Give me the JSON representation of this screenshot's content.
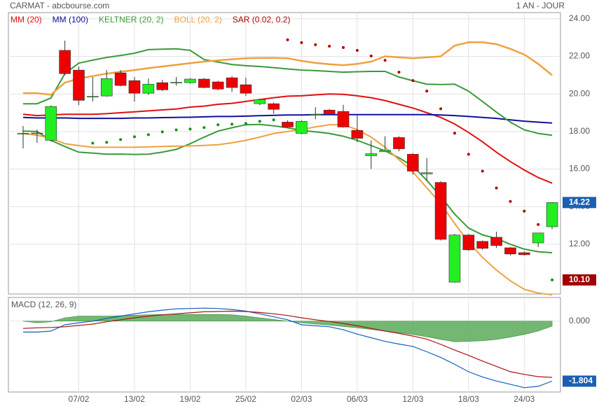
{
  "chart_data": [
    {
      "type": "candlestick",
      "title": "CARMAT - abcbourse.com",
      "subtitle": "1 AN - JOUR",
      "categories": [
        null,
        null,
        null,
        null,
        "07/02",
        null,
        null,
        null,
        "13/02",
        null,
        null,
        null,
        "19/02",
        null,
        null,
        null,
        "25/02",
        null,
        null,
        null,
        "02/03",
        null,
        null,
        null,
        "06/03",
        null,
        null,
        null,
        "12/03",
        null,
        null,
        null,
        "18/03",
        null,
        null,
        null,
        "24/03",
        null,
        null
      ],
      "open": [
        17.9,
        17.9,
        17.53,
        22.32,
        21.27,
        19.85,
        19.89,
        21.12,
        20.71,
        20.04,
        20.6,
        20.6,
        20.6,
        20.79,
        20.64,
        20.86,
        20.49,
        19.48,
        19.48,
        18.5,
        17.9,
        18.9,
        19.14,
        19.07,
        18.06,
        16.71,
        16.93,
        17.68,
        16.79,
        15.74,
        15.29,
        9.98,
        12.49,
        12.15,
        12.37,
        11.81,
        11.55,
        12.07,
        12.93
      ],
      "high": [
        18.3,
        18.1,
        19.4,
        22.84,
        21.46,
        20.9,
        21.27,
        21.27,
        20.9,
        20.82,
        20.75,
        20.9,
        20.85,
        20.85,
        20.7,
        20.95,
        20.86,
        19.75,
        19.55,
        18.6,
        18.6,
        19.3,
        19.2,
        19.42,
        18.85,
        17.53,
        17.75,
        17.75,
        16.85,
        16.59,
        15.35,
        12.55,
        12.55,
        12.2,
        12.67,
        11.85,
        11.62,
        12.6,
        14.25
      ],
      "low": [
        17.1,
        17.4,
        17.46,
        21.0,
        19.4,
        19.6,
        19.85,
        20.4,
        19.59,
        19.95,
        20.15,
        20.45,
        20.55,
        20.3,
        20.2,
        20.1,
        19.9,
        19.4,
        18.95,
        18.2,
        17.85,
        18.65,
        18.9,
        18.2,
        17.42,
        16.0,
        16.9,
        16.95,
        15.7,
        15.4,
        12.2,
        9.95,
        11.65,
        11.7,
        11.8,
        11.4,
        11.4,
        11.85,
        12.8
      ],
      "close": [
        17.9,
        17.92,
        19.33,
        21.08,
        19.66,
        19.87,
        20.82,
        20.45,
        20.04,
        20.52,
        20.22,
        20.62,
        20.79,
        20.34,
        20.26,
        20.34,
        20.04,
        19.7,
        19.18,
        18.24,
        18.54,
        18.92,
        18.95,
        18.24,
        17.64,
        16.82,
        17.0,
        17.08,
        15.89,
        15.81,
        12.26,
        12.49,
        11.7,
        11.78,
        11.93,
        11.48,
        11.44,
        12.6,
        14.22
      ],
      "up_color": "#22ee22",
      "down_color": "#ee0000",
      "label_color": "#1a5fb4",
      "series": [
        {
          "name": "MM (20)",
          "color": "#e01010",
          "values": [
            18.92,
            18.85,
            18.88,
            18.92,
            18.92,
            18.92,
            18.95,
            19.0,
            19.05,
            19.1,
            19.15,
            19.2,
            19.3,
            19.35,
            19.45,
            19.5,
            19.6,
            19.7,
            19.8,
            19.88,
            19.9,
            19.95,
            20.0,
            19.98,
            19.9,
            19.8,
            19.65,
            19.45,
            19.25,
            19.0,
            18.75,
            18.4,
            17.95,
            17.45,
            16.9,
            16.4,
            15.95,
            15.55,
            15.25
          ]
        },
        {
          "name": "MM (100)",
          "color": "#1010a0",
          "values": [
            18.75,
            18.72,
            18.72,
            18.72,
            18.7,
            18.7,
            18.7,
            18.7,
            18.72,
            18.72,
            18.74,
            18.75,
            18.76,
            18.78,
            18.8,
            18.8,
            18.82,
            18.84,
            18.86,
            18.88,
            18.88,
            18.9,
            18.9,
            18.9,
            18.9,
            18.9,
            18.9,
            18.9,
            18.9,
            18.9,
            18.88,
            18.85,
            18.8,
            18.75,
            18.7,
            18.62,
            18.55,
            18.5,
            18.45
          ]
        },
        {
          "name": "KELTNER (20, 2)",
          "color": "#3a9a3a",
          "values": [
            19.48,
            19.48,
            19.78,
            21.08,
            21.64,
            21.8,
            21.94,
            22.05,
            22.17,
            22.36,
            22.38,
            22.4,
            22.32,
            21.83,
            21.7,
            21.57,
            21.5,
            21.46,
            21.4,
            21.33,
            21.27,
            21.24,
            21.2,
            21.16,
            21.18,
            21.2,
            21.2,
            20.9,
            20.7,
            20.52,
            20.5,
            20.52,
            20.15,
            19.6,
            19.03,
            18.5,
            18.09,
            17.9,
            17.8
          ],
          "values_lower": [
            18.02,
            18.0,
            17.53,
            17.2,
            16.9,
            16.85,
            16.79,
            16.8,
            16.78,
            16.79,
            16.9,
            17.05,
            17.35,
            17.7,
            18.02,
            18.2,
            18.36,
            18.38,
            18.3,
            18.2,
            18.06,
            17.98,
            17.9,
            17.75,
            17.53,
            17.25,
            16.97,
            16.6,
            16.15,
            15.4,
            14.54,
            13.6,
            12.86,
            12.5,
            12.3,
            12.0,
            11.74,
            11.6,
            11.55
          ]
        },
        {
          "name": "BOLL (20, 2)",
          "color": "#f0a040",
          "values": [
            20.04,
            20.04,
            19.96,
            20.6,
            20.82,
            20.95,
            21.08,
            21.18,
            21.27,
            21.37,
            21.46,
            21.55,
            21.64,
            21.72,
            21.79,
            21.85,
            21.9,
            21.92,
            21.92,
            21.9,
            21.76,
            21.65,
            21.58,
            21.53,
            21.6,
            21.72,
            22.0,
            21.95,
            21.9,
            21.95,
            22.0,
            22.57,
            22.75,
            22.75,
            22.65,
            22.4,
            22.1,
            21.6,
            21.0
          ],
          "values_lower": [
            17.9,
            17.8,
            17.64,
            17.35,
            17.25,
            17.16,
            17.16,
            17.16,
            17.16,
            17.18,
            17.2,
            17.22,
            17.23,
            17.26,
            17.3,
            17.4,
            17.53,
            17.7,
            17.9,
            18.0,
            18.1,
            18.25,
            18.36,
            18.36,
            18.1,
            17.7,
            17.16,
            16.5,
            15.85,
            15.0,
            14.17,
            13.1,
            12.11,
            11.3,
            10.62,
            10.05,
            9.6,
            9.4,
            9.31
          ]
        }
      ],
      "sar": {
        "name": "SAR (0.02, 0.2)",
        "color_above": "#b00000",
        "color_below": "#109010",
        "values": [
          null,
          null,
          null,
          null,
          null,
          17.38,
          17.42,
          17.57,
          17.72,
          17.83,
          17.98,
          18.09,
          18.13,
          18.21,
          18.36,
          18.39,
          18.43,
          18.54,
          18.62,
          22.88,
          22.73,
          22.62,
          22.54,
          22.47,
          22.32,
          22.02,
          21.79,
          21.16,
          20.71,
          20.15,
          19.21,
          17.91,
          16.79,
          15.89,
          14.99,
          14.28,
          13.76,
          13.05,
          10.1
        ],
        "value_labels": [
          null,
          null,
          null,
          null,
          null,
          null,
          null,
          null,
          null,
          null,
          null,
          null,
          null,
          null,
          null,
          null,
          null,
          null,
          null,
          null,
          null,
          null,
          null,
          null,
          null,
          null,
          null,
          null,
          null,
          null,
          null,
          null,
          null,
          null,
          null,
          null,
          null,
          null,
          "10.10"
        ],
        "label_color": "#a00000"
      },
      "ylim": [
        9.35,
        24.33
      ],
      "yticks": [
        {
          "value": 12,
          "label": "12.00"
        },
        {
          "value": 14,
          "label": "14.00"
        },
        {
          "value": 16,
          "label": "16.00"
        },
        {
          "value": 18,
          "label": "18.00"
        },
        {
          "value": 20,
          "label": "20.00"
        },
        {
          "value": 22,
          "label": "22.00"
        },
        {
          "value": 24,
          "label": "24.00"
        }
      ],
      "grid": true
    },
    {
      "type": "line",
      "title": "MACD (12, 26, 9)",
      "title_color": "#1a5fb4",
      "series": [
        {
          "color": "#1060c0",
          "values": [
            -0.33,
            -0.33,
            -0.3,
            -0.11,
            -0.05,
            0,
            0.08,
            0.15,
            0.22,
            0.28,
            0.33,
            0.37,
            0.38,
            0.39,
            0.38,
            0.35,
            0.3,
            0.22,
            0.13,
            0.04,
            -0.11,
            -0.14,
            -0.17,
            -0.26,
            -0.39,
            -0.5,
            -0.61,
            -0.69,
            -0.76,
            -0.92,
            -1.09,
            -1.3,
            -1.52,
            -1.68,
            -1.8,
            -1.9,
            -2.0,
            -1.96,
            -1.804
          ]
        },
        {
          "color": "#b01010",
          "values": [
            -0.22,
            -0.2,
            -0.19,
            -0.17,
            -0.13,
            -0.09,
            -0.02,
            0.04,
            0.1,
            0.15,
            0.19,
            0.22,
            0.25,
            0.28,
            0.29,
            0.3,
            0.29,
            0.26,
            0.22,
            0.17,
            0.1,
            0.04,
            -0.01,
            -0.07,
            -0.14,
            -0.22,
            -0.3,
            -0.37,
            -0.45,
            -0.54,
            -0.7,
            -0.87,
            -1.03,
            -1.2,
            -1.36,
            -1.52,
            -1.6,
            -1.67,
            -1.69
          ]
        }
      ],
      "histogram": {
        "color": "#5aaa5a",
        "values": [
          0,
          -0.05,
          -0.02,
          0.1,
          0.15,
          0.15,
          0.15,
          0.16,
          0.18,
          0.19,
          0.2,
          0.2,
          0.2,
          0.2,
          0.2,
          0.19,
          0.15,
          0.1,
          0.05,
          0,
          -0.05,
          -0.09,
          -0.12,
          -0.16,
          -0.2,
          -0.25,
          -0.3,
          -0.35,
          -0.4,
          -0.47,
          -0.55,
          -0.62,
          -0.61,
          -0.59,
          -0.55,
          -0.48,
          -0.4,
          -0.3,
          -0.15
        ]
      },
      "label_color": "#1a5fb4",
      "ylim": [
        -2.13,
        0.71
      ],
      "yticks": [
        {
          "value": 0,
          "label": "0.000"
        }
      ],
      "grid": true
    }
  ]
}
